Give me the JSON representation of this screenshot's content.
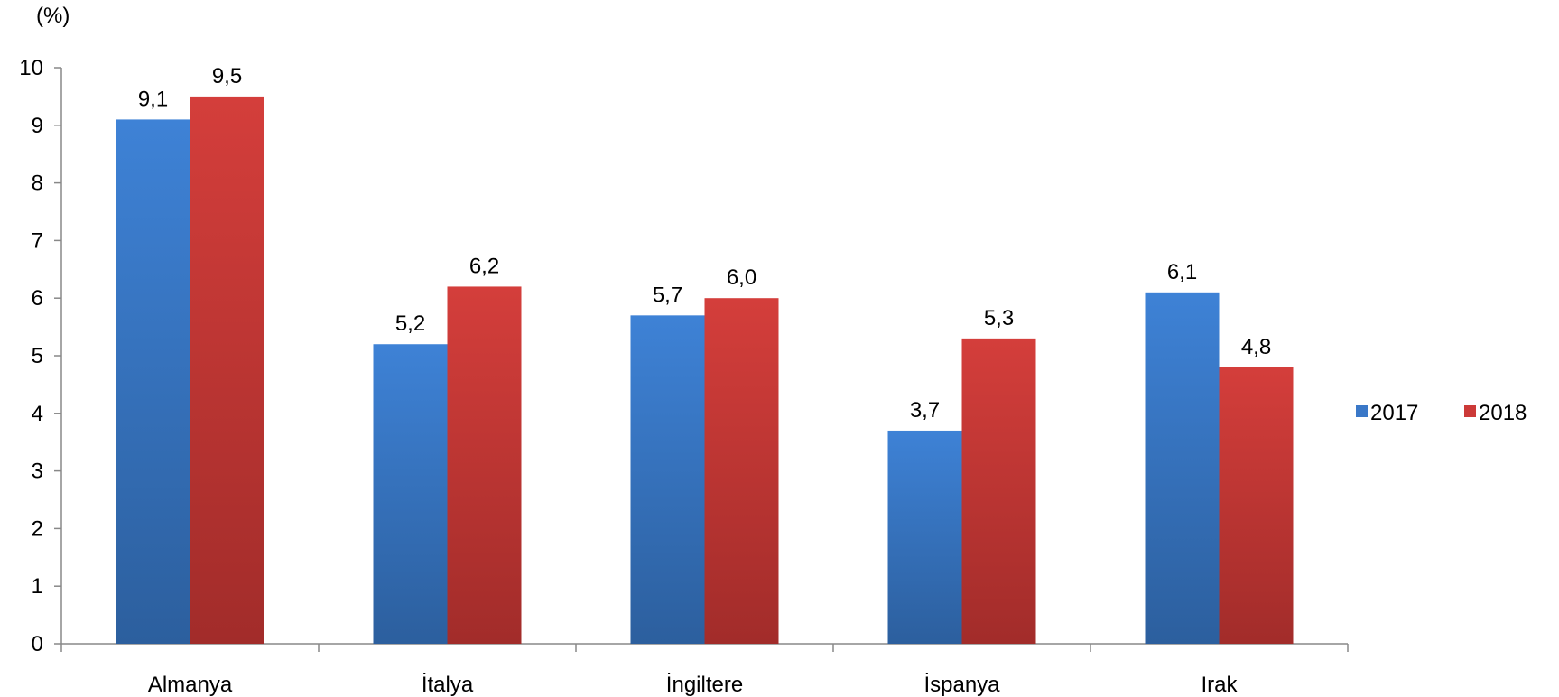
{
  "chart_data": {
    "type": "bar",
    "ylabel": "(%)",
    "categories": [
      "Almanya",
      "İtalya",
      "İngiltere",
      "İspanya",
      "Irak"
    ],
    "series": [
      {
        "name": "2017",
        "values": [
          9.1,
          5.2,
          5.7,
          3.7,
          6.1
        ],
        "labels": [
          "9,1",
          "5,2",
          "5,7",
          "3,7",
          "6,1"
        ],
        "color": "#3A78C8"
      },
      {
        "name": "2018",
        "values": [
          9.5,
          6.2,
          6.0,
          5.3,
          4.8
        ],
        "labels": [
          "9,5",
          "6,2",
          "6,0",
          "5,3",
          "4,8"
        ],
        "color": "#CC3A38"
      }
    ],
    "ylim": [
      0,
      10
    ],
    "yticks": [
      0,
      1,
      2,
      3,
      4,
      5,
      6,
      7,
      8,
      9,
      10
    ],
    "grid": false,
    "legend_position": "right"
  }
}
